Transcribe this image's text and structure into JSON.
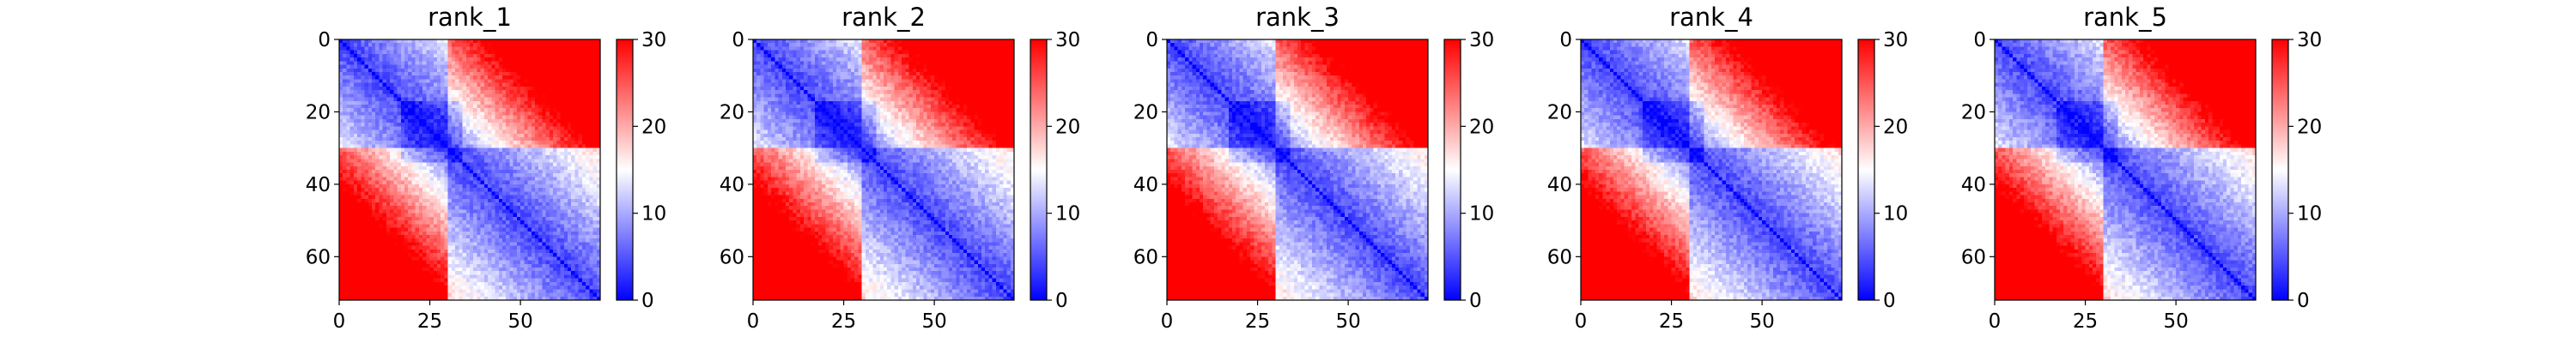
{
  "chart_data": [
    {
      "type": "heatmap",
      "title": "rank_1",
      "rows": 72,
      "cols": 72,
      "extent": [
        0,
        72
      ],
      "x_ticks": [
        0,
        25,
        50
      ],
      "y_ticks": [
        0,
        20,
        40,
        60
      ],
      "color_scale": {
        "min": 0,
        "max": 30,
        "low_color": "#0000ff",
        "mid_color": "#ffffff",
        "high_color": "#ff0000"
      },
      "colorbar_ticks": [
        0,
        10,
        20,
        30
      ],
      "domains": [
        [
          0,
          30
        ],
        [
          30,
          72
        ]
      ],
      "variant": 0
    },
    {
      "type": "heatmap",
      "title": "rank_2",
      "rows": 72,
      "cols": 72,
      "extent": [
        0,
        72
      ],
      "x_ticks": [
        0,
        25,
        50
      ],
      "y_ticks": [
        0,
        20,
        40,
        60
      ],
      "color_scale": {
        "min": 0,
        "max": 30,
        "low_color": "#0000ff",
        "mid_color": "#ffffff",
        "high_color": "#ff0000"
      },
      "colorbar_ticks": [
        0,
        10,
        20,
        30
      ],
      "domains": [
        [
          0,
          30
        ],
        [
          30,
          72
        ]
      ],
      "variant": 1
    },
    {
      "type": "heatmap",
      "title": "rank_3",
      "rows": 72,
      "cols": 72,
      "extent": [
        0,
        72
      ],
      "x_ticks": [
        0,
        25,
        50
      ],
      "y_ticks": [
        0,
        20,
        40,
        60
      ],
      "color_scale": {
        "min": 0,
        "max": 30,
        "low_color": "#0000ff",
        "mid_color": "#ffffff",
        "high_color": "#ff0000"
      },
      "colorbar_ticks": [
        0,
        10,
        20,
        30
      ],
      "domains": [
        [
          0,
          30
        ],
        [
          30,
          72
        ]
      ],
      "variant": 2
    },
    {
      "type": "heatmap",
      "title": "rank_4",
      "rows": 72,
      "cols": 72,
      "extent": [
        0,
        72
      ],
      "x_ticks": [
        0,
        25,
        50
      ],
      "y_ticks": [
        0,
        20,
        40,
        60
      ],
      "color_scale": {
        "min": 0,
        "max": 30,
        "low_color": "#0000ff",
        "mid_color": "#ffffff",
        "high_color": "#ff0000"
      },
      "colorbar_ticks": [
        0,
        10,
        20,
        30
      ],
      "domains": [
        [
          0,
          30
        ],
        [
          30,
          72
        ]
      ],
      "variant": 3
    },
    {
      "type": "heatmap",
      "title": "rank_5",
      "rows": 72,
      "cols": 72,
      "extent": [
        0,
        72
      ],
      "x_ticks": [
        0,
        25,
        50
      ],
      "y_ticks": [
        0,
        20,
        40,
        60
      ],
      "color_scale": {
        "min": 0,
        "max": 30,
        "low_color": "#0000ff",
        "mid_color": "#ffffff",
        "high_color": "#ff0000"
      },
      "colorbar_ticks": [
        0,
        10,
        20,
        30
      ],
      "domains": [
        [
          0,
          30
        ],
        [
          30,
          72
        ]
      ],
      "variant": 4
    }
  ]
}
